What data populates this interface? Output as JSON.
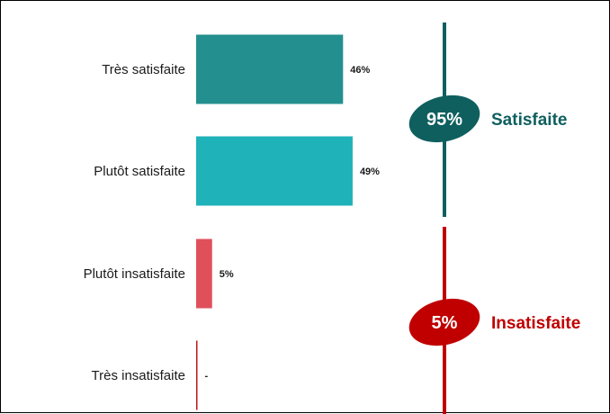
{
  "chart_data": {
    "type": "bar",
    "orientation": "horizontal",
    "categories": [
      "Très satisfaite",
      "Plutôt satisfaite",
      "Plutôt insatisfaite",
      "Très insatisfaite"
    ],
    "values": [
      46,
      49,
      5,
      0
    ],
    "value_labels": [
      "46%",
      "49%",
      "5%",
      "-"
    ],
    "bar_colors": [
      "#23908f",
      "#1fb2b9",
      "#e0505a",
      "#c0141c"
    ],
    "groups": [
      {
        "label": "Satisfaite",
        "percent": "95%",
        "color": "#0f5f5f",
        "categories": [
          0,
          1
        ]
      },
      {
        "label": "Insatisfaite",
        "percent": "5%",
        "color": "#c00000",
        "categories": [
          2,
          3
        ]
      }
    ],
    "xlim": [
      0,
      100
    ],
    "grid": false,
    "legend": "none"
  }
}
